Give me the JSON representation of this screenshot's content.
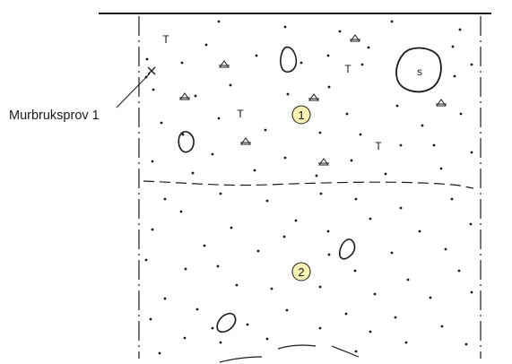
{
  "figure": {
    "sample_label": "Murbruksprov 1",
    "layers": [
      {
        "number": "1",
        "fill": "#fbf3b3"
      },
      {
        "number": "2",
        "fill": "#fbf3b3"
      }
    ],
    "markers": {
      "tile_letter": "T",
      "stone_letter": "s"
    },
    "colors": {
      "line": "#1a1a1a",
      "background": "#ffffff",
      "badge_fill": "#fbf3b3"
    }
  }
}
